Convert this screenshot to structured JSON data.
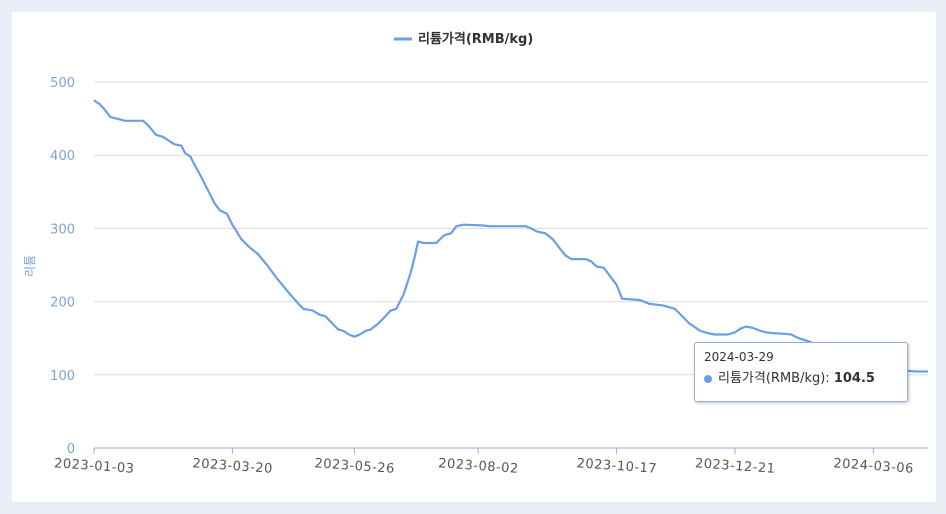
{
  "chart_data": {
    "type": "line",
    "legend": "리튬가격(RMB/kg)",
    "legend_position": "top-center",
    "ylabel": "리튬",
    "ylim": [
      0,
      500
    ],
    "y_ticks": [
      "0",
      "100",
      "200",
      "300",
      "400",
      "500"
    ],
    "x_ticks": [
      "2023-01-03",
      "2023-03-20",
      "2023-05-26",
      "2023-08-02",
      "2023-10-17",
      "2023-12-21",
      "2024-03-06"
    ],
    "x_range": [
      "2023-01-03",
      "2024-04-05"
    ],
    "grid": true,
    "color": "#6a9ee8",
    "series": [
      {
        "name": "리튬가격(RMB/kg)",
        "points": [
          [
            "2023-01-03",
            475
          ],
          [
            "2023-01-06",
            470
          ],
          [
            "2023-01-09",
            462
          ],
          [
            "2023-01-12",
            452
          ],
          [
            "2023-01-17",
            449
          ],
          [
            "2023-01-20",
            447
          ],
          [
            "2023-01-30",
            447
          ],
          [
            "2023-02-02",
            440
          ],
          [
            "2023-02-06",
            428
          ],
          [
            "2023-02-10",
            425
          ],
          [
            "2023-02-13",
            420
          ],
          [
            "2023-02-16",
            415
          ],
          [
            "2023-02-20",
            413
          ],
          [
            "2023-02-22",
            403
          ],
          [
            "2023-02-25",
            398
          ],
          [
            "2023-02-28",
            383
          ],
          [
            "2023-03-03",
            370
          ],
          [
            "2023-03-07",
            350
          ],
          [
            "2023-03-10",
            335
          ],
          [
            "2023-03-13",
            325
          ],
          [
            "2023-03-17",
            320
          ],
          [
            "2023-03-20",
            305
          ],
          [
            "2023-03-25",
            285
          ],
          [
            "2023-03-29",
            275
          ],
          [
            "2023-04-03",
            265
          ],
          [
            "2023-04-08",
            250
          ],
          [
            "2023-04-14",
            230
          ],
          [
            "2023-04-20",
            212
          ],
          [
            "2023-04-25",
            198
          ],
          [
            "2023-04-28",
            190
          ],
          [
            "2023-05-03",
            188
          ],
          [
            "2023-05-07",
            182
          ],
          [
            "2023-05-10",
            180
          ],
          [
            "2023-05-14",
            170
          ],
          [
            "2023-05-17",
            162
          ],
          [
            "2023-05-20",
            160
          ],
          [
            "2023-05-23",
            155
          ],
          [
            "2023-05-26",
            152
          ],
          [
            "2023-05-29",
            155
          ],
          [
            "2023-06-01",
            160
          ],
          [
            "2023-06-04",
            162
          ],
          [
            "2023-06-08",
            170
          ],
          [
            "2023-06-12",
            180
          ],
          [
            "2023-06-15",
            188
          ],
          [
            "2023-06-18",
            190
          ],
          [
            "2023-06-22",
            210
          ],
          [
            "2023-06-26",
            240
          ],
          [
            "2023-06-28",
            260
          ],
          [
            "2023-06-30",
            282
          ],
          [
            "2023-07-03",
            280
          ],
          [
            "2023-07-10",
            280
          ],
          [
            "2023-07-14",
            290
          ],
          [
            "2023-07-16",
            292
          ],
          [
            "2023-07-18",
            293
          ],
          [
            "2023-07-21",
            303
          ],
          [
            "2023-07-25",
            305
          ],
          [
            "2023-08-05",
            304
          ],
          [
            "2023-08-08",
            303
          ],
          [
            "2023-08-28",
            303
          ],
          [
            "2023-08-31",
            300
          ],
          [
            "2023-09-03",
            296
          ],
          [
            "2023-09-08",
            293
          ],
          [
            "2023-09-12",
            285
          ],
          [
            "2023-09-16",
            272
          ],
          [
            "2023-09-19",
            263
          ],
          [
            "2023-09-22",
            258
          ],
          [
            "2023-09-30",
            258
          ],
          [
            "2023-10-03",
            255
          ],
          [
            "2023-10-06",
            248
          ],
          [
            "2023-10-10",
            246
          ],
          [
            "2023-10-13",
            236
          ],
          [
            "2023-10-17",
            223
          ],
          [
            "2023-10-20",
            204
          ],
          [
            "2023-10-30",
            202
          ],
          [
            "2023-11-04",
            197
          ],
          [
            "2023-11-11",
            195
          ],
          [
            "2023-11-14",
            193
          ],
          [
            "2023-11-18",
            190
          ],
          [
            "2023-11-22",
            180
          ],
          [
            "2023-11-26",
            170
          ],
          [
            "2023-11-29",
            165
          ],
          [
            "2023-12-02",
            160
          ],
          [
            "2023-12-06",
            157
          ],
          [
            "2023-12-10",
            155
          ],
          [
            "2023-12-17",
            155
          ],
          [
            "2023-12-21",
            158
          ],
          [
            "2023-12-24",
            163
          ],
          [
            "2023-12-27",
            166
          ],
          [
            "2023-12-31",
            164
          ],
          [
            "2024-01-04",
            160
          ],
          [
            "2024-01-07",
            158
          ],
          [
            "2024-01-11",
            157
          ],
          [
            "2024-01-17",
            156
          ],
          [
            "2024-01-21",
            155
          ],
          [
            "2024-01-25",
            150
          ],
          [
            "2024-01-29",
            147
          ],
          [
            "2024-02-02",
            143
          ],
          [
            "2024-02-06",
            133
          ],
          [
            "2024-02-10",
            128
          ],
          [
            "2024-02-14",
            120
          ],
          [
            "2024-02-18",
            112
          ],
          [
            "2024-02-26",
            110
          ],
          [
            "2024-03-06",
            110
          ],
          [
            "2024-03-14",
            108
          ],
          [
            "2024-03-22",
            106
          ],
          [
            "2024-03-29",
            104.5
          ],
          [
            "2024-04-05",
            104.5
          ]
        ]
      }
    ]
  },
  "tooltip": {
    "date": "2024-03-29",
    "series_label": "리튬가격(RMB/kg):",
    "value": "104.5"
  }
}
